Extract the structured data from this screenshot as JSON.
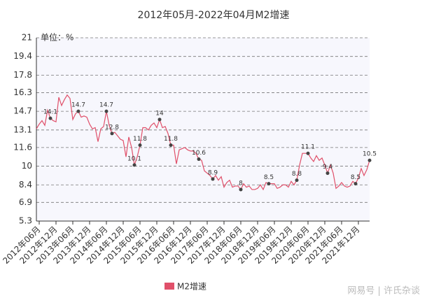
{
  "chart_data": {
    "type": "line",
    "title": "2012年05月-2022年04月M2增速",
    "y_unit": "单位：%",
    "watermark": "网易号 | 许氏杂谈",
    "categories": [
      null,
      "2012年06月",
      null,
      null,
      null,
      null,
      null,
      "2012年12月",
      null,
      null,
      null,
      null,
      null,
      "2013年06月",
      null,
      null,
      null,
      null,
      null,
      "2013年12月",
      null,
      null,
      null,
      null,
      null,
      "2014年06月",
      null,
      null,
      null,
      null,
      null,
      "2014年12月",
      null,
      null,
      null,
      null,
      null,
      "2015年06月",
      null,
      null,
      null,
      null,
      null,
      "2015年12月",
      null,
      null,
      null,
      null,
      null,
      "2016年06月",
      null,
      null,
      null,
      null,
      null,
      "2016年12月",
      null,
      null,
      null,
      null,
      null,
      "2017年06月",
      null,
      null,
      null,
      null,
      null,
      "2017年12月",
      null,
      null,
      null,
      null,
      null,
      "2018年06月",
      null,
      null,
      null,
      null,
      null,
      "2018年12月",
      null,
      null,
      null,
      null,
      null,
      "2019年06月",
      null,
      null,
      null,
      null,
      null,
      "2019年12月",
      null,
      null,
      null,
      null,
      null,
      "2020年06月",
      null,
      null,
      null,
      null,
      null,
      "2020年12月",
      null,
      null,
      null,
      null,
      null,
      "2021年06月",
      null,
      null,
      null,
      null,
      null,
      "2021年12月",
      null,
      null,
      null,
      null
    ],
    "series": [
      {
        "name": "M2增速",
        "color": "#e0506a",
        "values": [
          13.2,
          13.6,
          13.9,
          13.5,
          14.8,
          14.1,
          13.9,
          13.8,
          15.9,
          15.2,
          15.7,
          16.1,
          15.8,
          14.0,
          14.5,
          14.7,
          14.2,
          14.3,
          14.2,
          13.6,
          13.2,
          13.3,
          12.1,
          13.2,
          13.4,
          14.7,
          13.5,
          12.8,
          12.9,
          12.6,
          12.3,
          12.2,
          10.8,
          12.5,
          11.6,
          10.1,
          10.8,
          11.8,
          13.3,
          13.3,
          13.1,
          13.5,
          13.7,
          13.3,
          14.0,
          13.3,
          13.4,
          12.8,
          11.8,
          11.8,
          10.2,
          11.4,
          11.5,
          11.6,
          11.4,
          11.3,
          11.3,
          11.1,
          10.6,
          10.5,
          9.6,
          9.4,
          9.2,
          8.9,
          9.2,
          8.8,
          9.1,
          8.2,
          8.6,
          8.8,
          8.2,
          8.3,
          8.3,
          8.0,
          8.5,
          8.2,
          8.3,
          8.0,
          8.0,
          8.1,
          8.4,
          8.0,
          8.6,
          8.5,
          8.5,
          8.5,
          8.1,
          8.2,
          8.4,
          8.4,
          8.2,
          8.7,
          8.4,
          8.8,
          10.1,
          11.1,
          11.1,
          11.1,
          10.7,
          10.4,
          10.9,
          10.5,
          10.7,
          10.1,
          9.4,
          10.1,
          9.4,
          8.1,
          8.3,
          8.6,
          8.3,
          8.2,
          8.3,
          8.7,
          8.5,
          9.0,
          9.8,
          9.2,
          9.7,
          10.5
        ],
        "value_labels": [
          null,
          null,
          null,
          null,
          null,
          "14.1",
          null,
          null,
          null,
          null,
          null,
          null,
          null,
          null,
          null,
          "14.7",
          null,
          null,
          null,
          null,
          null,
          null,
          null,
          null,
          null,
          "14.7",
          null,
          "12.8",
          null,
          null,
          null,
          null,
          null,
          null,
          null,
          "10.1",
          null,
          "11.8",
          null,
          null,
          null,
          null,
          null,
          null,
          "14",
          null,
          null,
          null,
          "11.8",
          null,
          null,
          null,
          null,
          null,
          null,
          null,
          null,
          null,
          "10.6",
          null,
          null,
          null,
          null,
          "8.9",
          null,
          null,
          null,
          null,
          null,
          null,
          null,
          null,
          null,
          "8",
          null,
          null,
          null,
          null,
          null,
          null,
          null,
          null,
          null,
          "8.5",
          null,
          null,
          null,
          null,
          null,
          null,
          null,
          null,
          null,
          "8.8",
          null,
          null,
          null,
          "11.1",
          null,
          null,
          null,
          null,
          null,
          null,
          "9.4",
          null,
          null,
          null,
          null,
          null,
          null,
          null,
          null,
          null,
          "8.5",
          null,
          null,
          null,
          null,
          "10.5"
        ]
      }
    ],
    "ylim": [
      5.3,
      21
    ],
    "yticks": [
      5.3,
      6.9,
      8.4,
      10,
      11.6,
      13.1,
      14.7,
      16.3,
      17.8,
      19.4,
      21
    ],
    "grid": true,
    "legend": "bottom"
  }
}
